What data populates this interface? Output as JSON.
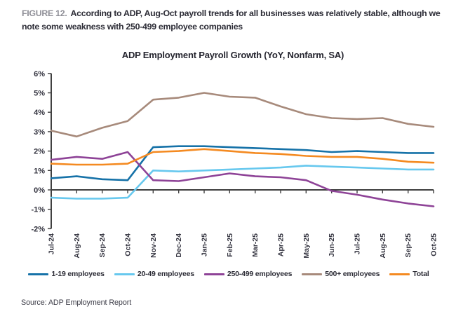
{
  "header": {
    "figure_label": "FIGURE 12.",
    "title": "According to ADP, Aug-Oct payroll trends for all businesses was relatively stable, although we note some weakness with 250-499 employee companies"
  },
  "footer": {
    "source": "Source: ADP Employment Report"
  },
  "chart_data": {
    "type": "line",
    "title": "ADP Employment Payroll Growth (YoY, Nonfarm, SA)",
    "x": [
      "Jul-24",
      "Aug-24",
      "Sep-24",
      "Oct-24",
      "Nov-24",
      "Dec-24",
      "Jan-25",
      "Feb-25",
      "Mar-25",
      "Apr-25",
      "May-25",
      "Jun-25",
      "Jul-25",
      "Aug-25",
      "Sep-25",
      "Oct-25"
    ],
    "series": [
      {
        "name": "1-19 employees",
        "color": "#1672a8",
        "values": [
          0.6,
          0.7,
          0.55,
          0.5,
          2.2,
          2.25,
          2.25,
          2.2,
          2.15,
          2.1,
          2.05,
          1.95,
          2.0,
          1.95,
          1.9,
          1.9
        ]
      },
      {
        "name": "20-49 employees",
        "color": "#67c8ee",
        "values": [
          -0.4,
          -0.45,
          -0.45,
          -0.4,
          1.0,
          0.95,
          1.0,
          1.05,
          1.1,
          1.15,
          1.25,
          1.2,
          1.15,
          1.1,
          1.05,
          1.05
        ]
      },
      {
        "name": "250-499 employees",
        "color": "#8e4397",
        "values": [
          1.55,
          1.7,
          1.6,
          1.95,
          0.5,
          0.45,
          0.65,
          0.85,
          0.7,
          0.65,
          0.5,
          -0.05,
          -0.25,
          -0.5,
          -0.7,
          -0.85
        ]
      },
      {
        "name": "500+ employees",
        "color": "#a78a7b",
        "values": [
          3.05,
          2.75,
          3.2,
          3.55,
          4.65,
          4.75,
          5.0,
          4.8,
          4.75,
          4.3,
          3.9,
          3.7,
          3.65,
          3.7,
          3.4,
          3.25
        ]
      },
      {
        "name": "Total",
        "color": "#f48a21",
        "values": [
          1.35,
          1.3,
          1.3,
          1.35,
          1.95,
          2.0,
          2.1,
          2.0,
          1.9,
          1.85,
          1.75,
          1.7,
          1.7,
          1.6,
          1.45,
          1.4
        ]
      }
    ],
    "ylim": [
      -2,
      6
    ],
    "ytick_step": 1,
    "ytick_suffix": "%",
    "grid": false,
    "legend_position": "bottom",
    "axis_color": "#404040"
  }
}
